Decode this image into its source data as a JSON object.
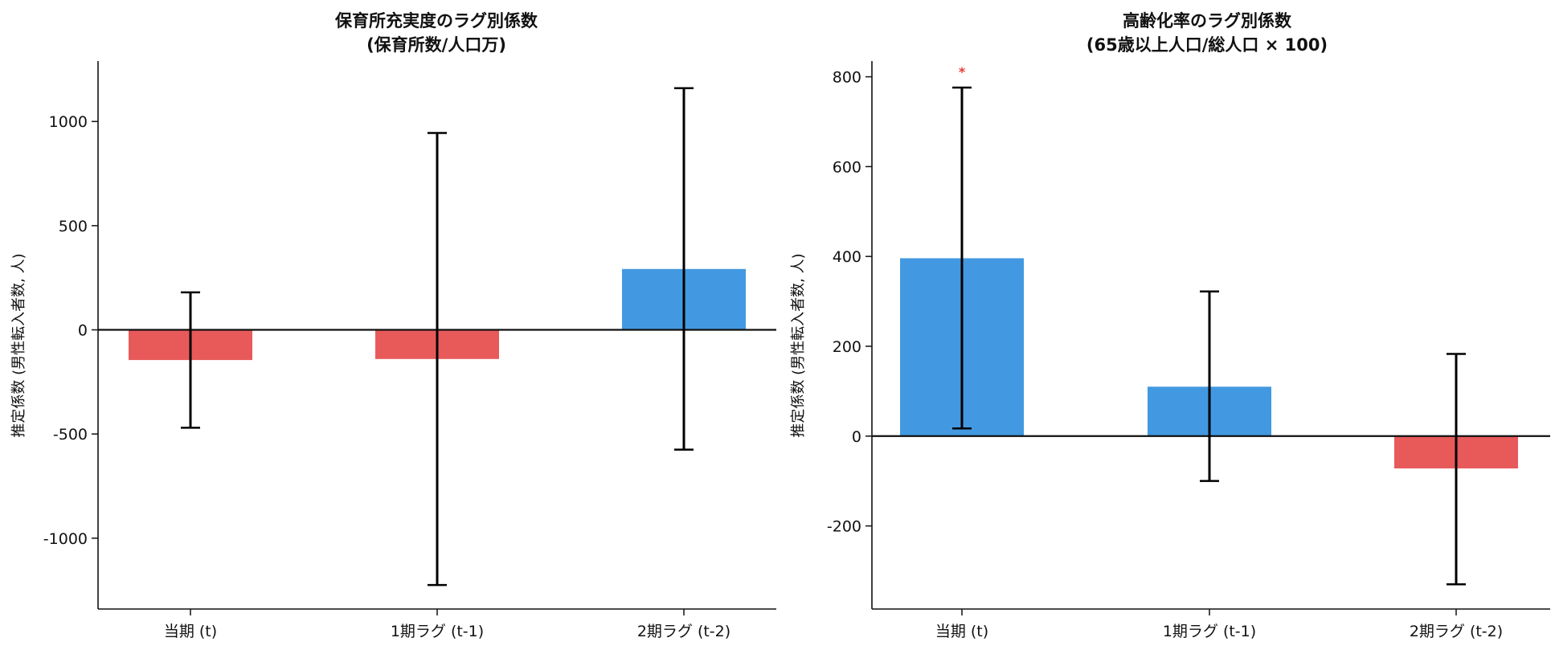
{
  "colors": {
    "positive": "#4299E1",
    "negative": "#E85A5A",
    "axis": "#111111",
    "significance": "#E53935"
  },
  "charts": [
    {
      "title_line1": "保育所充実度のラグ別係数",
      "title_line2": "(保育所数/人口万)",
      "ylabel": "推定係数 (男性転入者数, 人)",
      "yticks": [
        -1000,
        -500,
        0,
        500,
        1000
      ],
      "ytick_labels": [
        "-1000",
        "-500",
        "0",
        "500",
        "1000"
      ],
      "categories": [
        "当期 (t)",
        "1期ラグ (t-1)",
        "2期ラグ (t-2)"
      ]
    },
    {
      "title_line1": "高齢化率のラグ別係数",
      "title_line2": "(65歳以上人口/総人口 × 100)",
      "ylabel": "推定係数 (男性転入者数, 人)",
      "yticks": [
        -200,
        0,
        200,
        400,
        600,
        800
      ],
      "ytick_labels": [
        "-200",
        "0",
        "200",
        "400",
        "600",
        "800"
      ],
      "categories": [
        "当期 (t)",
        "1期ラグ (t-1)",
        "2期ラグ (t-2)"
      ]
    }
  ],
  "chart_data": [
    {
      "type": "bar",
      "title": "保育所充実度のラグ別係数 (保育所数/人口万)",
      "ylabel": "推定係数 (男性転入者数, 人)",
      "categories": [
        "当期 (t)",
        "1期ラグ (t-1)",
        "2期ラグ (t-2)"
      ],
      "values": [
        -145,
        -140,
        292
      ],
      "error_low": [
        -470,
        -1225,
        -575
      ],
      "error_high": [
        180,
        945,
        1160
      ],
      "significance": [
        "",
        "",
        ""
      ],
      "ylim": [
        -1340,
        1290
      ],
      "grid": false
    },
    {
      "type": "bar",
      "title": "高齢化率のラグ別係数 (65歳以上人口/総人口 × 100)",
      "ylabel": "推定係数 (男性転入者数, 人)",
      "categories": [
        "当期 (t)",
        "1期ラグ (t-1)",
        "2期ラグ (t-2)"
      ],
      "values": [
        396,
        110,
        -72
      ],
      "error_low": [
        17,
        -100,
        -330
      ],
      "error_high": [
        776,
        322,
        183
      ],
      "significance": [
        "*",
        "",
        ""
      ],
      "ylim": [
        -385,
        835
      ],
      "grid": false
    }
  ]
}
